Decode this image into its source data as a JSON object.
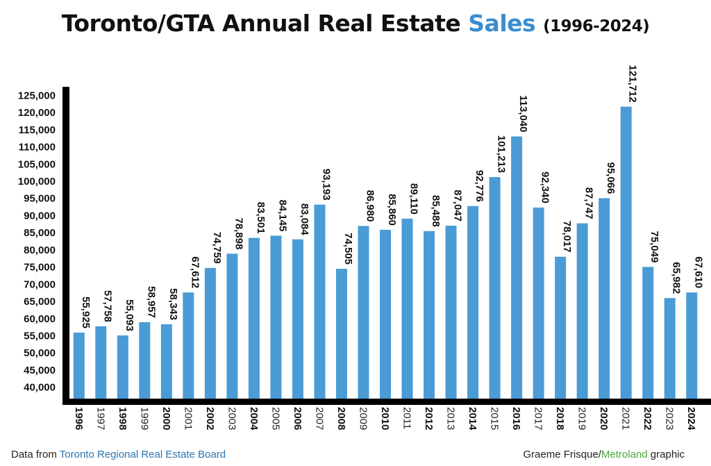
{
  "title": {
    "main": "Toronto/GTA Annual Real Estate",
    "highlight": "Sales",
    "years": "(1996-2024)"
  },
  "footer": {
    "source_prefix": "Data from",
    "source_name": "Toronto Regional Real Estate Board",
    "credit_name": "Graeme Frisque/",
    "credit_org": "Metroland",
    "credit_suffix": "graphic"
  },
  "colors": {
    "bar": "#4a9bd6",
    "highlight": "#3b8dd0",
    "axis": "#000000"
  },
  "chart_data": {
    "type": "bar",
    "title": "Toronto/GTA Annual Real Estate Sales (1996-2024)",
    "xlabel": "",
    "ylabel": "",
    "ylim": [
      37500,
      127500
    ],
    "grid": false,
    "yticks": [
      40000,
      45000,
      50000,
      55000,
      60000,
      65000,
      70000,
      75000,
      80000,
      85000,
      90000,
      95000,
      100000,
      105000,
      110000,
      115000,
      120000,
      125000
    ],
    "ytick_labels": [
      "40,000",
      "45,000",
      "50,000",
      "55,000",
      "60,000",
      "65,000",
      "70,000",
      "75,000",
      "80,000",
      "85,000",
      "90,000",
      "95,000",
      "100,000",
      "105,000",
      "110,000",
      "115,000",
      "120,000",
      "125,000"
    ],
    "categories": [
      "1996",
      "1997",
      "1998",
      "1999",
      "2000",
      "2001",
      "2002",
      "2003",
      "2004",
      "2005",
      "2006",
      "2007",
      "2008",
      "2009",
      "2010",
      "2011",
      "2012",
      "2013",
      "2014",
      "2015",
      "2016",
      "2017",
      "2018",
      "2019",
      "2020",
      "2021",
      "2022",
      "2023",
      "2024"
    ],
    "values": [
      55925,
      57758,
      55093,
      58957,
      58343,
      67612,
      74759,
      78898,
      83501,
      84145,
      83084,
      93193,
      74505,
      86980,
      85860,
      89110,
      85488,
      87047,
      92776,
      101213,
      113040,
      92340,
      78017,
      87747,
      95066,
      121712,
      75049,
      65982,
      67610
    ],
    "value_labels": [
      "55,925",
      "57,758",
      "55,093",
      "58,957",
      "58,343",
      "67,612",
      "74,759",
      "78,898",
      "83,501",
      "84,145",
      "83,084",
      "93,193",
      "74,505",
      "86,980",
      "85,860",
      "89,110",
      "85,488",
      "87,047",
      "92,776",
      "101,213",
      "113,040",
      "92,340",
      "78,017",
      "87,747",
      "95,066",
      "121,712",
      "75,049",
      "65,982",
      "67,610"
    ]
  }
}
